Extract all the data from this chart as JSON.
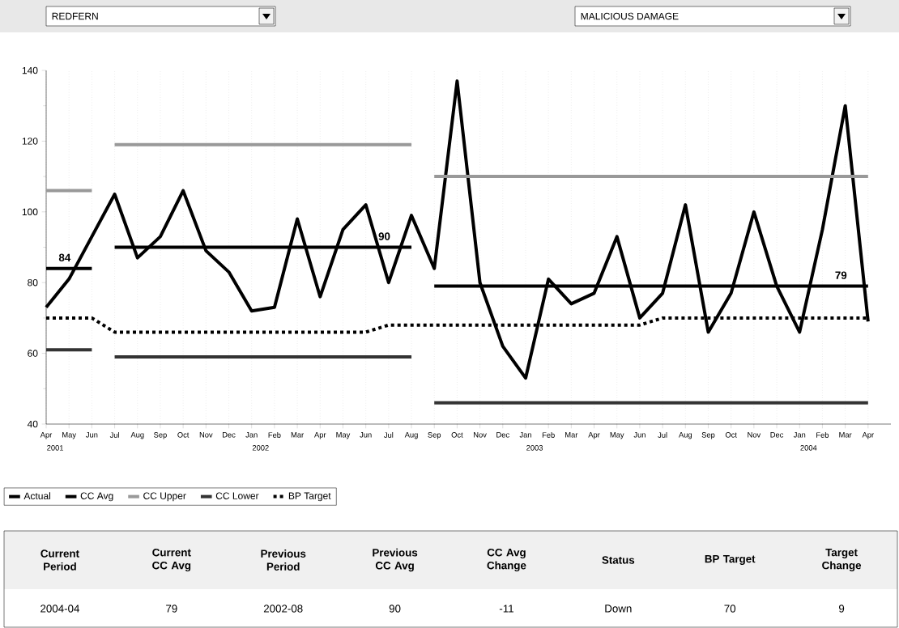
{
  "chart_data": {
    "type": "line",
    "title": "REDFERN",
    "subtitle": "MALICIOUS DAMAGE",
    "x": [
      "2001-04",
      "2001-05",
      "2001-06",
      "2001-07",
      "2001-08",
      "2001-09",
      "2001-10",
      "2001-11",
      "2001-12",
      "2002-01",
      "2002-02",
      "2002-03",
      "2002-04",
      "2002-05",
      "2002-06",
      "2002-07",
      "2002-08",
      "2002-09",
      "2002-10",
      "2002-11",
      "2002-12",
      "2003-01",
      "2003-02",
      "2003-03",
      "2003-04",
      "2003-05",
      "2003-06",
      "2003-07",
      "2003-08",
      "2003-09",
      "2003-10",
      "2003-11",
      "2003-12",
      "2004-01",
      "2004-02",
      "2004-03",
      "2004-04"
    ],
    "series": [
      {
        "name": "Actual",
        "color": "#000000",
        "values": [
          73,
          81,
          93,
          105,
          87,
          93,
          106,
          89,
          83,
          72,
          73,
          98,
          76,
          95,
          102,
          80,
          99,
          84,
          137,
          80,
          62,
          53,
          81,
          74,
          77,
          93,
          70,
          77,
          102,
          66,
          77,
          100,
          79,
          66,
          95,
          130,
          69
        ]
      },
      {
        "name": "CC Avg",
        "color": "#000000",
        "values": [
          84,
          84,
          84,
          90,
          90,
          90,
          90,
          90,
          90,
          90,
          90,
          90,
          90,
          90,
          90,
          90,
          90,
          79,
          79,
          79,
          79,
          79,
          79,
          79,
          79,
          79,
          79,
          79,
          79,
          79,
          79,
          79,
          79,
          79,
          79,
          79,
          79
        ]
      },
      {
        "name": "CC Upper",
        "color": "#999999",
        "values": [
          106,
          106,
          106,
          119,
          119,
          119,
          119,
          119,
          119,
          119,
          119,
          119,
          119,
          119,
          119,
          119,
          119,
          110,
          110,
          110,
          110,
          110,
          110,
          110,
          110,
          110,
          110,
          110,
          110,
          110,
          110,
          110,
          110,
          110,
          110,
          110,
          110
        ]
      },
      {
        "name": "CC Lower",
        "color": "#333333",
        "values": [
          61,
          61,
          61,
          59,
          59,
          59,
          59,
          59,
          59,
          59,
          59,
          59,
          59,
          59,
          59,
          59,
          59,
          46,
          46,
          46,
          46,
          46,
          46,
          46,
          46,
          46,
          46,
          46,
          46,
          46,
          46,
          46,
          46,
          46,
          46,
          46,
          46
        ]
      },
      {
        "name": "BP Target",
        "color": "#000000",
        "line_style": "dotted",
        "values": [
          70,
          70,
          70,
          66,
          66,
          66,
          66,
          66,
          66,
          66,
          66,
          66,
          66,
          66,
          66,
          68,
          68,
          68,
          68,
          68,
          68,
          68,
          68,
          68,
          68,
          68,
          68,
          70,
          70,
          70,
          70,
          70,
          70,
          70,
          70,
          70,
          70
        ]
      }
    ],
    "xlim": [
      "2001-04",
      "2004-05"
    ],
    "xticks": [
      {
        "value": "2001-04",
        "label": "Apr"
      },
      {
        "value": "2001-05",
        "label": "May"
      },
      {
        "value": "2001-06",
        "label": "Jun"
      },
      {
        "value": "2001-07",
        "label": "Jul"
      },
      {
        "value": "2001-08",
        "label": "Aug"
      },
      {
        "value": "2001-09",
        "label": "Sep"
      },
      {
        "value": "2001-10",
        "label": "Oct"
      },
      {
        "value": "2001-11",
        "label": "Nov"
      },
      {
        "value": "2001-12",
        "label": "Dec"
      },
      {
        "value": "2002-01",
        "label": "Jan"
      },
      {
        "value": "2002-02",
        "label": "Feb"
      },
      {
        "value": "2002-03",
        "label": "Mar"
      },
      {
        "value": "2002-04",
        "label": "Apr"
      },
      {
        "value": "2002-05",
        "label": "May"
      },
      {
        "value": "2002-06",
        "label": "Jun"
      },
      {
        "value": "2002-07",
        "label": "Jul"
      },
      {
        "value": "2002-08",
        "label": "Aug"
      },
      {
        "value": "2002-09",
        "label": "Sep"
      },
      {
        "value": "2002-10",
        "label": "Oct"
      },
      {
        "value": "2002-11",
        "label": "Nov"
      },
      {
        "value": "2002-12",
        "label": "Dec"
      },
      {
        "value": "2003-01",
        "label": "Jan"
      },
      {
        "value": "2003-02",
        "label": "Feb"
      },
      {
        "value": "2003-03",
        "label": "Mar"
      },
      {
        "value": "2003-04",
        "label": "Apr"
      },
      {
        "value": "2003-05",
        "label": "May"
      },
      {
        "value": "2003-06",
        "label": "Jun"
      },
      {
        "value": "2003-07",
        "label": "Jul"
      },
      {
        "value": "2003-08",
        "label": "Aug"
      },
      {
        "value": "2003-09",
        "label": "Sep"
      },
      {
        "value": "2003-10",
        "label": "Oct"
      },
      {
        "value": "2003-11",
        "label": "Nov"
      },
      {
        "value": "2003-12",
        "label": "Dec"
      },
      {
        "value": "2004-01",
        "label": "Jan"
      },
      {
        "value": "2004-02",
        "label": "Feb"
      },
      {
        "value": "2004-03",
        "label": "Mar"
      },
      {
        "value": "2004-04",
        "label": "Apr"
      }
    ],
    "ylim": [
      40,
      140
    ],
    "yticks": [
      40,
      60,
      80,
      100,
      120,
      140
    ],
    "grid": "x",
    "legend": "bottom",
    "line_style": "solid",
    "annotations": [
      {
        "text": "84",
        "x": "2001-05",
        "y": 84
      },
      {
        "text": "90",
        "x": "2002-07",
        "y": 90
      },
      {
        "text": "79",
        "x": "2004-03",
        "y": 79
      },
      "2001",
      "2002",
      "2003",
      "2004",
      "Current Period",
      "Current CC Avg",
      "Previous Period",
      "Previous CC Avg",
      "CC Avg Change",
      "Status",
      "BP Target",
      "Target Change",
      "2004-04",
      "79",
      "2002-08",
      "90",
      "-11",
      "Down",
      "70",
      "9"
    ]
  }
}
